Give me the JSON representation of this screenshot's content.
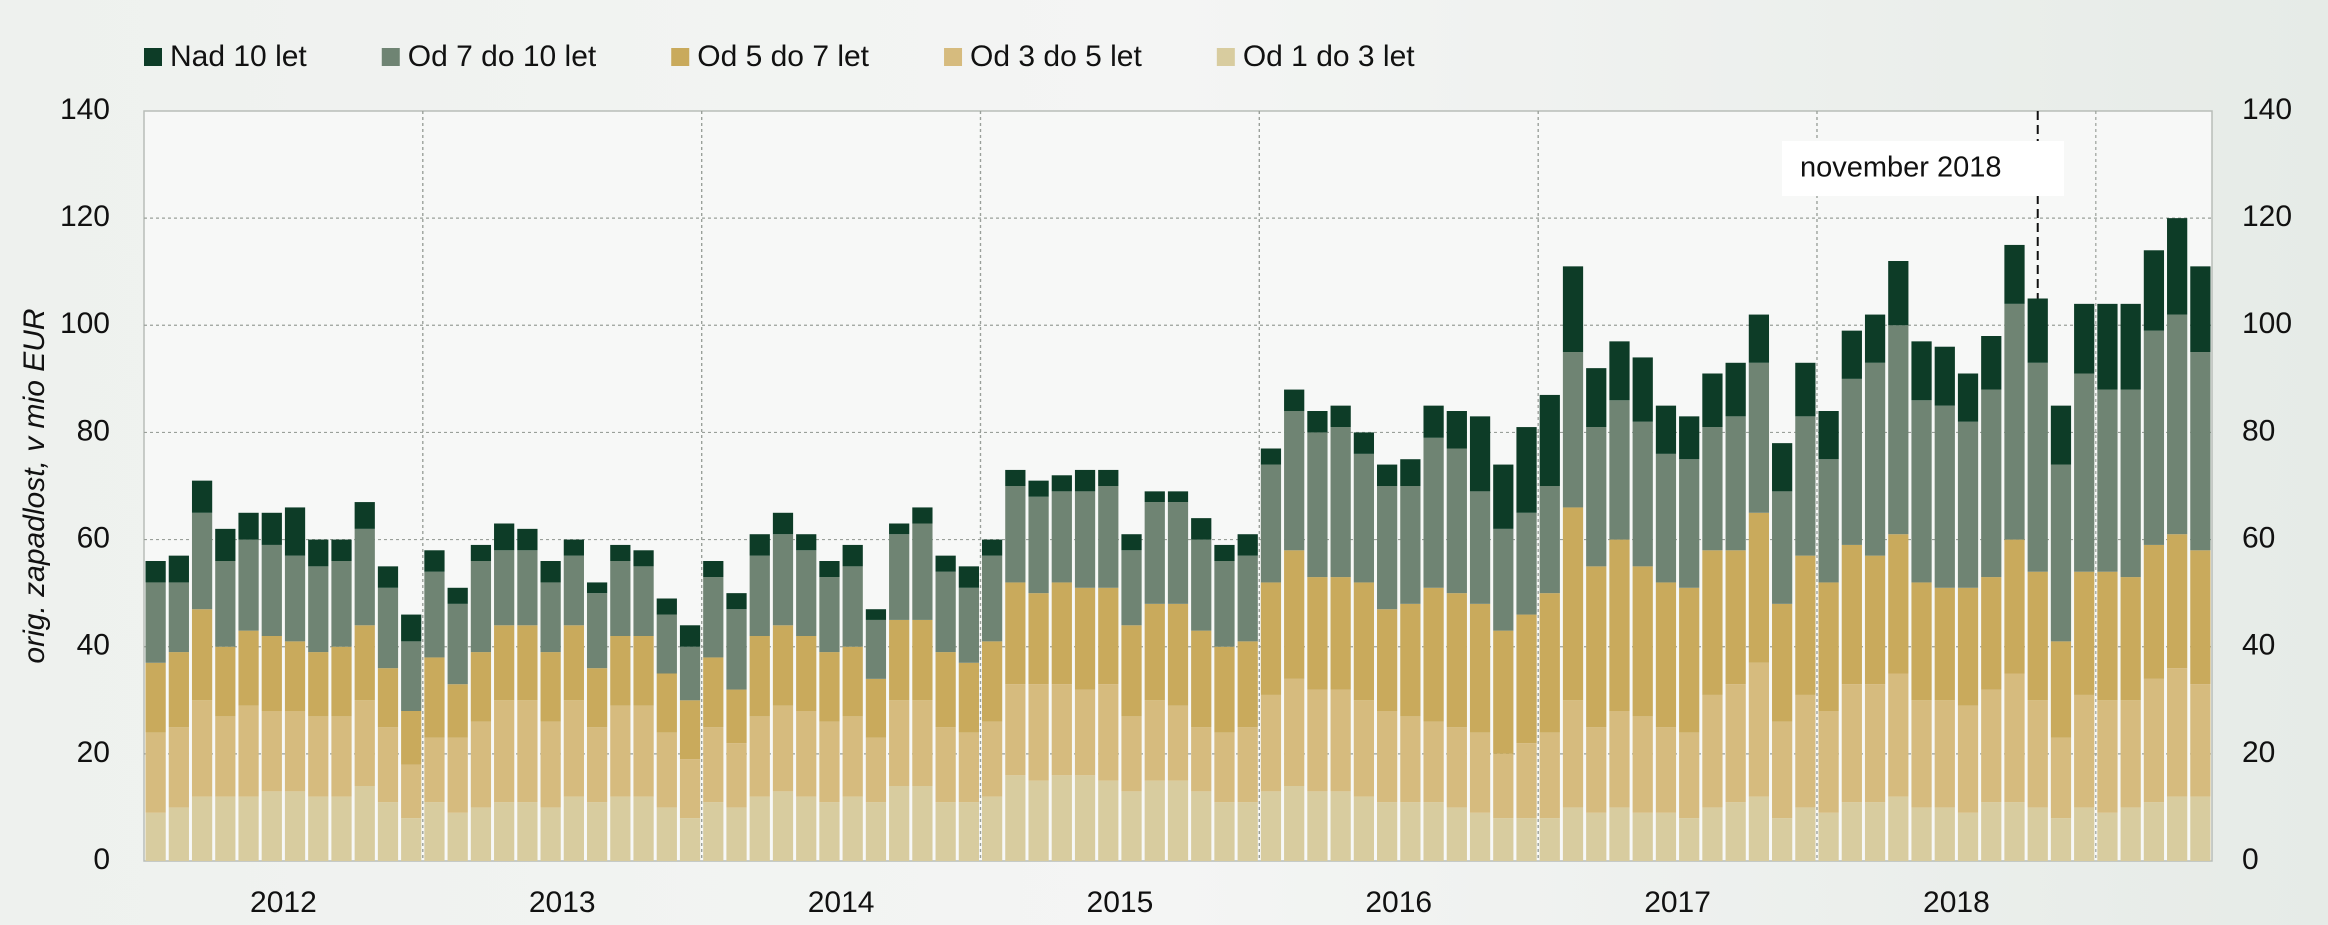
{
  "chart_data": {
    "type": "stacked_bar",
    "y_label": "orig. zapadlost, v mio EUR",
    "categories": [
      null,
      null,
      null,
      null,
      null,
      null,
      "2012",
      null,
      null,
      null,
      null,
      null,
      null,
      null,
      null,
      null,
      null,
      null,
      "2013",
      null,
      null,
      null,
      null,
      null,
      null,
      null,
      null,
      null,
      null,
      null,
      "2014",
      null,
      null,
      null,
      null,
      null,
      null,
      null,
      null,
      null,
      null,
      null,
      "2015",
      null,
      null,
      null,
      null,
      null,
      null,
      null,
      null,
      null,
      null,
      null,
      "2016",
      null,
      null,
      null,
      null,
      null,
      null,
      null,
      null,
      null,
      null,
      null,
      "2017",
      null,
      null,
      null,
      null,
      null,
      null,
      null,
      null,
      null,
      null,
      null,
      "2018",
      null,
      null,
      null,
      null,
      null,
      null,
      null,
      null,
      null,
      null
    ],
    "series": [
      {
        "name": "Od 1 do 3 let",
        "color": "#d8cc9f",
        "values": [
          9,
          10,
          12,
          12,
          12,
          13,
          13,
          12,
          12,
          14,
          11,
          8,
          11,
          9,
          10,
          11,
          11,
          10,
          12,
          11,
          12,
          12,
          10,
          8,
          11,
          10,
          12,
          13,
          12,
          11,
          12,
          11,
          14,
          14,
          11,
          11,
          12,
          16,
          15,
          16,
          16,
          15,
          13,
          15,
          15,
          13,
          11,
          11,
          13,
          14,
          13,
          13,
          12,
          11,
          11,
          11,
          10,
          9,
          8,
          8,
          8,
          10,
          9,
          10,
          9,
          9,
          8,
          10,
          11,
          12,
          8,
          10,
          9,
          11,
          11,
          12,
          10,
          10,
          9,
          11,
          11,
          10,
          8,
          10,
          9,
          10,
          11,
          12,
          12
        ]
      },
      {
        "name": "Od 3 do 5 let",
        "color": "#d6bb7e",
        "values": [
          15,
          15,
          18,
          15,
          17,
          15,
          15,
          15,
          15,
          16,
          14,
          10,
          12,
          14,
          16,
          19,
          19,
          16,
          18,
          14,
          17,
          17,
          14,
          11,
          14,
          12,
          15,
          16,
          16,
          15,
          15,
          12,
          16,
          16,
          14,
          13,
          14,
          17,
          18,
          17,
          16,
          18,
          14,
          15,
          14,
          12,
          13,
          14,
          18,
          20,
          19,
          19,
          18,
          17,
          16,
          15,
          15,
          15,
          12,
          14,
          16,
          20,
          16,
          18,
          18,
          16,
          16,
          21,
          22,
          25,
          18,
          21,
          19,
          22,
          22,
          23,
          20,
          20,
          20,
          21,
          24,
          20,
          15,
          21,
          21,
          20,
          23,
          24,
          21
        ]
      },
      {
        "name": "Od 5 do 7 let",
        "color": "#c9aa5c",
        "values": [
          13,
          14,
          17,
          13,
          14,
          14,
          13,
          12,
          13,
          14,
          11,
          10,
          15,
          10,
          13,
          14,
          14,
          13,
          14,
          11,
          13,
          13,
          11,
          11,
          13,
          10,
          15,
          15,
          14,
          13,
          13,
          11,
          15,
          15,
          14,
          13,
          15,
          19,
          17,
          19,
          19,
          18,
          17,
          18,
          19,
          18,
          16,
          16,
          21,
          24,
          21,
          21,
          22,
          19,
          21,
          25,
          25,
          24,
          23,
          24,
          26,
          36,
          30,
          32,
          28,
          27,
          27,
          27,
          25,
          28,
          22,
          26,
          24,
          26,
          24,
          26,
          22,
          21,
          22,
          21,
          25,
          24,
          18,
          23,
          24,
          23,
          25,
          25,
          25
        ]
      },
      {
        "name": "Od 7 do 10 let",
        "color": "#6f8473",
        "values": [
          15,
          13,
          18,
          16,
          17,
          17,
          16,
          16,
          16,
          18,
          15,
          13,
          16,
          15,
          17,
          14,
          14,
          13,
          13,
          14,
          14,
          13,
          11,
          10,
          15,
          15,
          15,
          17,
          16,
          14,
          15,
          11,
          16,
          18,
          15,
          14,
          16,
          18,
          18,
          17,
          18,
          19,
          14,
          19,
          19,
          17,
          16,
          16,
          22,
          26,
          27,
          28,
          24,
          23,
          22,
          28,
          27,
          21,
          19,
          19,
          20,
          29,
          26,
          26,
          27,
          24,
          24,
          23,
          25,
          28,
          21,
          26,
          23,
          31,
          36,
          39,
          34,
          34,
          31,
          35,
          44,
          39,
          33,
          37,
          34,
          35,
          40,
          41,
          37
        ]
      },
      {
        "name": "Nad 10 let",
        "color": "#0d3c27",
        "values": [
          4,
          5,
          6,
          6,
          5,
          6,
          9,
          5,
          4,
          5,
          4,
          5,
          4,
          3,
          3,
          5,
          4,
          4,
          3,
          2,
          3,
          3,
          3,
          4,
          3,
          3,
          4,
          4,
          3,
          3,
          4,
          2,
          2,
          3,
          3,
          4,
          3,
          3,
          3,
          3,
          4,
          3,
          3,
          2,
          2,
          4,
          3,
          4,
          3,
          4,
          4,
          4,
          4,
          4,
          5,
          6,
          7,
          14,
          12,
          16,
          17,
          16,
          11,
          11,
          12,
          9,
          8,
          10,
          10,
          9,
          9,
          10,
          9,
          9,
          9,
          12,
          11,
          11,
          9,
          10,
          11,
          12,
          11,
          13,
          16,
          16,
          15,
          18,
          16
        ]
      }
    ],
    "ylim": [
      0,
      140
    ],
    "yticks": [
      0,
      20,
      40,
      60,
      80,
      100,
      120,
      140
    ],
    "grid": true,
    "annotation": {
      "text": "november 2018",
      "category_index": 81
    }
  }
}
